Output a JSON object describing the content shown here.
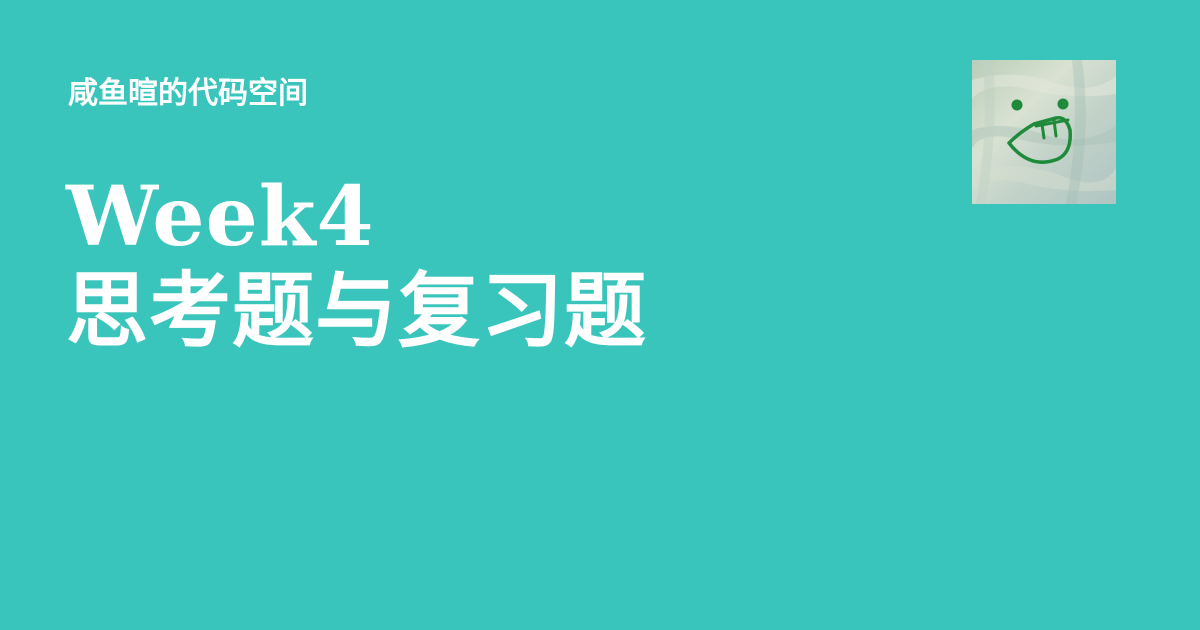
{
  "site": {
    "name": "咸鱼暄的代码空间"
  },
  "post": {
    "title_line1": "Week4",
    "title_line2": "思考题与复习题"
  },
  "avatar": {
    "icon": "smiley-face-icon"
  },
  "colors": {
    "background": "#3AC5BC",
    "text": "#FFFFFF",
    "avatar_face": "#1E8A3A",
    "avatar_paint": "#C9D8C6"
  }
}
